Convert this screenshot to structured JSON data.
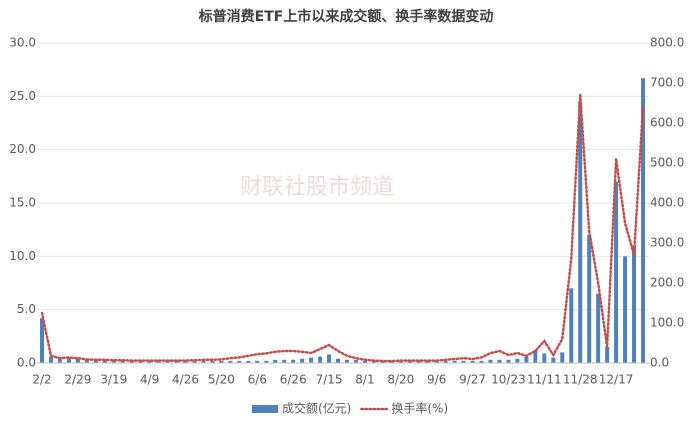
{
  "chart_data": {
    "type": "bar-line",
    "title": "标普消费ETF上市以来成交额、换手率数据变动",
    "watermark": "财联社股市频道",
    "categories": [
      "2/2",
      null,
      null,
      null,
      "2/29",
      null,
      null,
      null,
      "3/19",
      null,
      null,
      null,
      "4/9",
      null,
      null,
      null,
      "4/26",
      null,
      null,
      null,
      "5/20",
      null,
      null,
      null,
      "6/6",
      null,
      null,
      null,
      "6/26",
      null,
      null,
      null,
      "7/15",
      null,
      null,
      null,
      "8/1",
      null,
      null,
      null,
      "8/20",
      null,
      null,
      null,
      "9/6",
      null,
      null,
      null,
      "9/27",
      null,
      null,
      null,
      "10/23",
      null,
      null,
      null,
      "11/11",
      null,
      null,
      null,
      "11/28",
      null,
      null,
      null,
      "12/17",
      null,
      null,
      null
    ],
    "series": [
      {
        "name": "成交额(亿元)",
        "color": "#4f81bd",
        "axis": "y",
        "values": [
          4.2,
          0.6,
          0.4,
          0.5,
          0.4,
          0.3,
          0.3,
          0.3,
          0.3,
          0.3,
          0.2,
          0.2,
          0.2,
          0.2,
          0.2,
          0.2,
          0.2,
          0.2,
          0.2,
          0.2,
          0.2,
          0.2,
          0.2,
          0.2,
          0.2,
          0.2,
          0.3,
          0.3,
          0.3,
          0.4,
          0.5,
          0.6,
          0.8,
          0.4,
          0.3,
          0.3,
          0.2,
          0.2,
          0.2,
          0.2,
          0.2,
          0.2,
          0.2,
          0.2,
          0.2,
          0.2,
          0.2,
          0.2,
          0.2,
          0.2,
          0.3,
          0.3,
          0.3,
          0.4,
          0.6,
          1.2,
          0.9,
          0.5,
          1,
          7,
          24.5,
          12,
          6.5,
          1.5,
          17,
          10,
          11,
          26.7
        ]
      },
      {
        "name": "换手率(%)",
        "color": "#c0504d",
        "axis": "y2",
        "values": [
          125,
          18,
          12,
          14,
          12,
          9,
          8,
          8,
          7,
          7,
          6,
          6,
          6,
          6,
          6,
          6,
          6,
          7,
          8,
          8,
          9,
          12,
          14,
          18,
          22,
          24,
          28,
          30,
          30,
          28,
          25,
          35,
          45,
          30,
          18,
          12,
          8,
          6,
          5,
          5,
          6,
          6,
          6,
          6,
          6,
          8,
          10,
          12,
          10,
          14,
          25,
          30,
          20,
          25,
          18,
          30,
          55,
          20,
          60,
          260,
          670,
          330,
          200,
          40,
          510,
          350,
          270,
          640
        ]
      }
    ],
    "ylim": [
      0,
      30
    ],
    "yticks": [
      {
        "value": 0,
        "label": "0.0"
      },
      {
        "value": 5,
        "label": "5.0"
      },
      {
        "value": 10,
        "label": "10.0"
      },
      {
        "value": 15,
        "label": "15.0"
      },
      {
        "value": 20,
        "label": "20.0"
      },
      {
        "value": 25,
        "label": "25.0"
      },
      {
        "value": 30,
        "label": "30.0"
      }
    ],
    "y2lim": [
      0,
      800
    ],
    "y2ticks": [
      {
        "value": 0,
        "label": "0.0"
      },
      {
        "value": 100,
        "label": "100.0"
      },
      {
        "value": 200,
        "label": "200.0"
      },
      {
        "value": 300,
        "label": "300.0"
      },
      {
        "value": 400,
        "label": "400.0"
      },
      {
        "value": 500,
        "label": "500.0"
      },
      {
        "value": 600,
        "label": "600.0"
      },
      {
        "value": 700,
        "label": "700.0"
      },
      {
        "value": 800,
        "label": "800.0"
      }
    ],
    "grid": true
  }
}
